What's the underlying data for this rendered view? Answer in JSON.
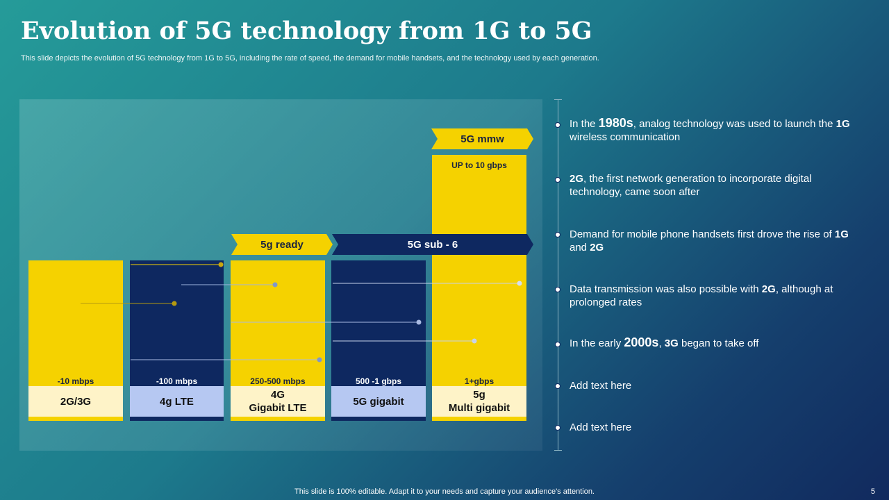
{
  "slide": {
    "title": "Evolution of 5G technology from 1G to 5G",
    "subtitle": "This slide depicts the evolution of 5G technology from 1G to 5G, including the rate of speed, the demand for mobile handsets, and the technology used by each generation.",
    "footer": "This slide is 100% editable. Adapt it to your needs and capture your audience's attention.",
    "page_number": "5"
  },
  "bars": [
    {
      "speed": "-10 mbps",
      "label": "2G/3G",
      "color": "#f5d200"
    },
    {
      "speed": "-100 mbps",
      "label": "4g LTE",
      "color": "#0e2860"
    },
    {
      "speed": "250-500  mbps",
      "label": "4G\nGigabit LTE",
      "color": "#f5d200"
    },
    {
      "speed": "500 -1 gbps",
      "label": "5G gigabit",
      "color": "#0e2860"
    },
    {
      "speed": "1+gbps",
      "label": "5g\nMulti gigabit",
      "color": "#f5d200",
      "top_note": "UP to 10 gbps"
    }
  ],
  "banners": {
    "five_g_ready": "5g ready",
    "five_g_sub6": "5G sub - 6",
    "five_g_mmw": "5G mmw"
  },
  "timeline": [
    {
      "pre": "In the ",
      "big": "1980s",
      "mid": ", analog technology  was used to launch  the ",
      "bold": "1G",
      "post": " wireless communication"
    },
    {
      "bold": "2G",
      "post": ", the first network  generation to incorporate digital technology,  came soon after"
    },
    {
      "pre": "Demand for mobile phone handsets first drove the rise of ",
      "bold": "1G",
      "mid": " and ",
      "bold2": "2G"
    },
    {
      "pre": "Data transmission was also possible with ",
      "bold": "2G",
      "post": ", although at prolonged rates"
    },
    {
      "pre": "In the early ",
      "big": "2000s",
      "mid": ", ",
      "bold": "3G",
      "post": " began to take off"
    },
    {
      "pre": "Add text here"
    },
    {
      "pre": "Add text here"
    }
  ],
  "colors": {
    "accent_yellow": "#f5d200",
    "navy": "#0e2860",
    "label_light": "#fef3c8",
    "label_blue": "#b6c8f2"
  }
}
